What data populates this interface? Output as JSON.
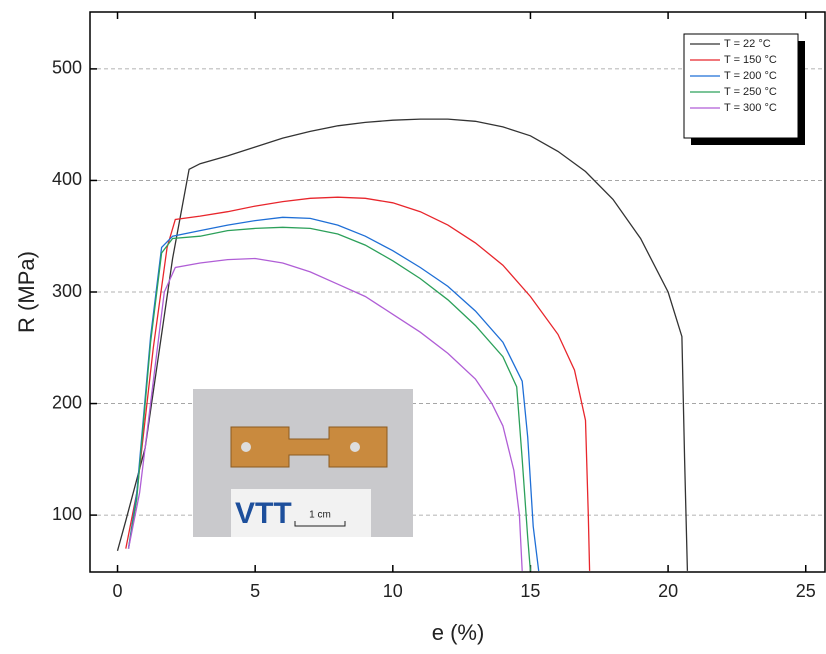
{
  "chart_data": {
    "type": "line",
    "x_label": "e (%)",
    "y_label": "R (MPa)",
    "xlim": [
      -1,
      25.7
    ],
    "ylim": [
      49,
      551
    ],
    "xticks": [
      0,
      5,
      10,
      15,
      20,
      25
    ],
    "yticks": [
      100,
      200,
      300,
      400,
      500
    ],
    "grid": true,
    "legend": "upper right",
    "annotations": [
      "VTT",
      "1 cm"
    ],
    "series": [
      {
        "name": "T = 22 °C",
        "color": "#333333",
        "x": [
          0,
          0.3,
          1,
          2,
          2.6,
          3,
          4,
          5,
          6,
          7,
          8,
          9,
          10,
          11,
          12,
          13,
          14,
          15,
          16,
          17,
          18,
          19,
          20,
          20.5,
          20.6,
          20.7
        ],
        "values": [
          68,
          95,
          160,
          330,
          410,
          415,
          422,
          430,
          438,
          444,
          449,
          452,
          454,
          455,
          455,
          453,
          448,
          440,
          426,
          408,
          383,
          348,
          300,
          260,
          150,
          50
        ]
      },
      {
        "name": "T = 150 °C",
        "color": "#e8262c",
        "x": [
          0.3,
          0.7,
          1.3,
          1.8,
          2.1,
          3,
          4,
          5,
          6,
          7,
          8,
          9,
          10,
          11,
          12,
          13,
          14,
          15,
          16,
          16.6,
          17,
          17.1,
          17.15
        ],
        "values": [
          70,
          120,
          250,
          340,
          365,
          368,
          372,
          377,
          381,
          384,
          385,
          384,
          380,
          372,
          360,
          344,
          324,
          296,
          262,
          230,
          185,
          100,
          50
        ]
      },
      {
        "name": "T = 200 °C",
        "color": "#1f6fd6",
        "x": [
          0.4,
          0.7,
          1.2,
          1.6,
          2,
          3,
          4,
          5,
          6,
          7,
          8,
          9,
          10,
          11,
          12,
          13,
          14,
          14.7,
          14.9,
          15.1,
          15.3
        ],
        "values": [
          70,
          120,
          260,
          340,
          350,
          355,
          360,
          364,
          367,
          366,
          360,
          350,
          337,
          322,
          305,
          283,
          255,
          220,
          170,
          90,
          50
        ]
      },
      {
        "name": "T = 250 °C",
        "color": "#2ca05a",
        "x": [
          0.4,
          0.7,
          1.2,
          1.6,
          2,
          3,
          4,
          5,
          6,
          7,
          8,
          9,
          10,
          11,
          12,
          13,
          14,
          14.5,
          14.7,
          14.9,
          15
        ],
        "values": [
          70,
          115,
          255,
          335,
          348,
          350,
          355,
          357,
          358,
          357,
          352,
          342,
          328,
          312,
          293,
          270,
          242,
          215,
          150,
          80,
          50
        ]
      },
      {
        "name": "T = 300 °C",
        "color": "#b05ed6",
        "x": [
          0.4,
          0.8,
          1.3,
          1.7,
          2.1,
          3,
          4,
          5,
          6,
          7,
          8,
          9,
          10,
          11,
          12,
          13,
          13.6,
          14,
          14.4,
          14.6,
          14.7
        ],
        "values": [
          70,
          120,
          220,
          300,
          322,
          326,
          329,
          330,
          326,
          318,
          307,
          296,
          280,
          264,
          245,
          222,
          200,
          180,
          140,
          100,
          50
        ]
      }
    ]
  }
}
